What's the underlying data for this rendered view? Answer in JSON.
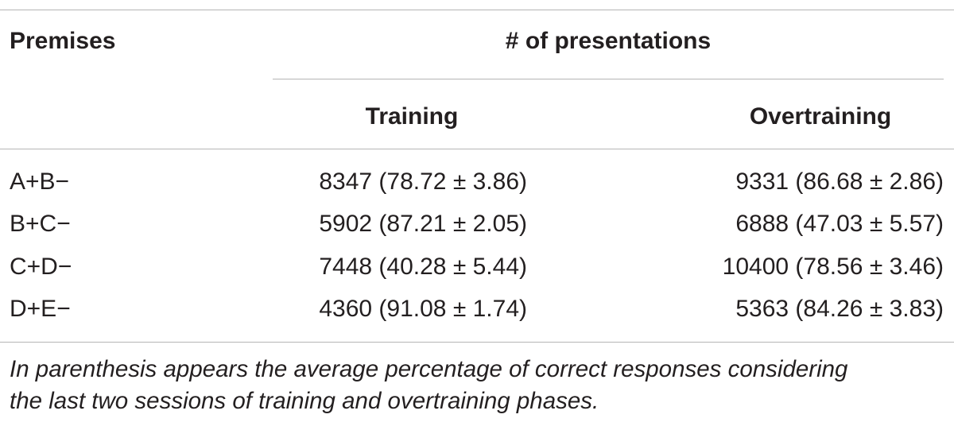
{
  "header": {
    "premises": "Premises",
    "group": "# of presentations",
    "columns": [
      "Training",
      "Overtraining"
    ]
  },
  "table": {
    "rows": [
      [
        "A+B−",
        "8347 (78.72 ± 3.86)",
        "9331 (86.68 ± 2.86)"
      ],
      [
        "B+C−",
        "5902 (87.21 ± 2.05)",
        "6888 (47.03 ± 5.57)"
      ],
      [
        "C+D−",
        "7448 (40.28 ± 5.44)",
        "10400 (78.56 ± 3.46)"
      ],
      [
        "D+E−",
        "4360 (91.08 ± 1.74)",
        "5363 (84.26 ± 3.83)"
      ]
    ]
  },
  "footnote": [
    "In parenthesis appears the average percentage of correct responses considering",
    "the last two sessions of training and overtraining phases."
  ]
}
